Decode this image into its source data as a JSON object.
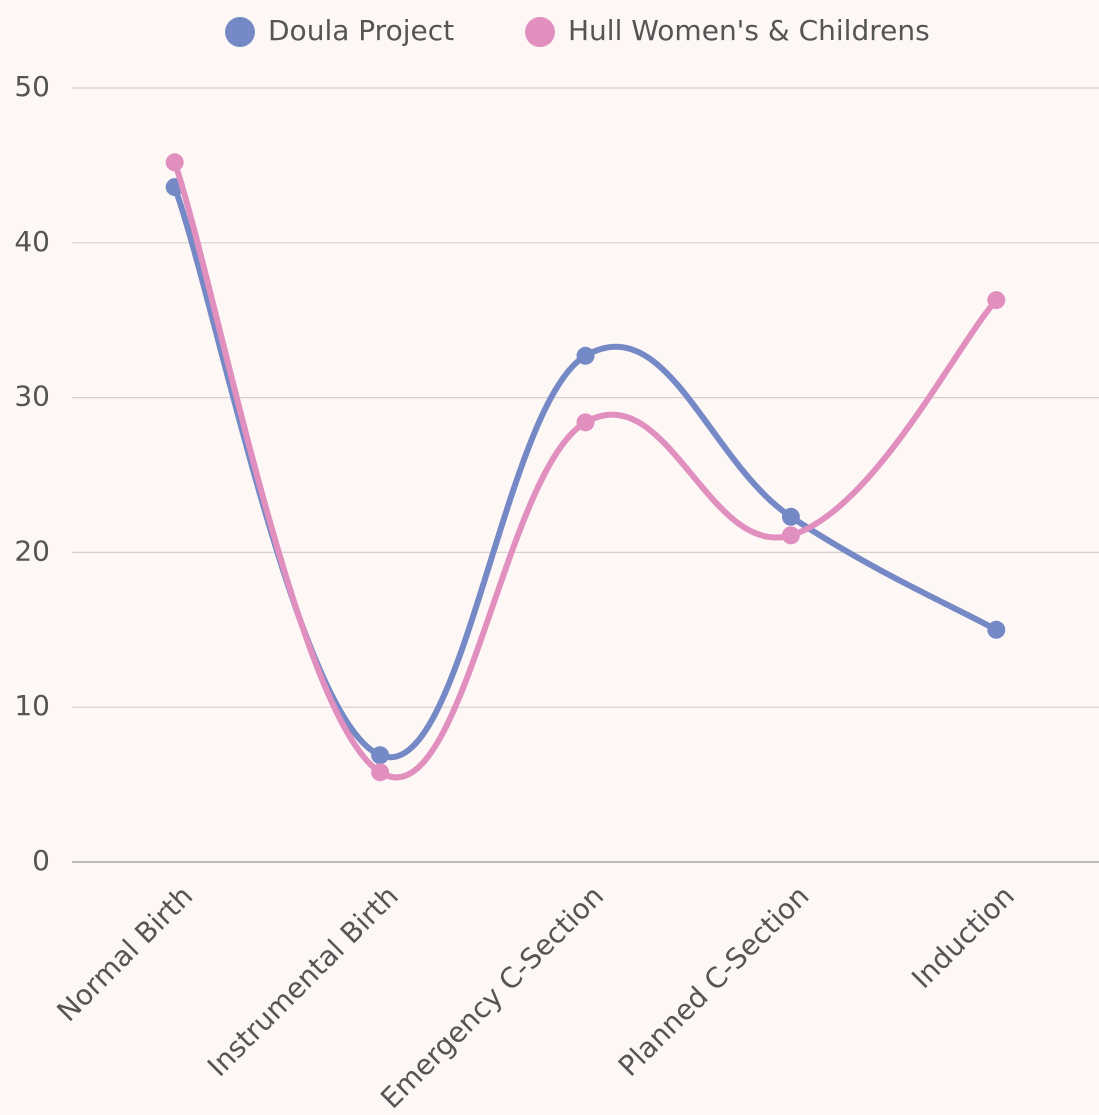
{
  "chart_data": {
    "type": "line",
    "categories": [
      "Normal Birth",
      "Instrumental Birth",
      "Emergency C-Section",
      "Planned C-Section",
      "Induction"
    ],
    "series": [
      {
        "name": "Doula Project",
        "color": "#7589c6",
        "values": [
          43.6,
          6.9,
          32.7,
          22.3,
          15.0
        ]
      },
      {
        "name": "Hull Women's & Childrens",
        "color": "#e08fbf",
        "values": [
          45.2,
          5.8,
          28.4,
          21.1,
          36.3
        ]
      }
    ],
    "ylim": [
      0,
      50
    ],
    "yticks": [
      0,
      10,
      20,
      30,
      40,
      50
    ],
    "grid": true,
    "legend": "top"
  }
}
